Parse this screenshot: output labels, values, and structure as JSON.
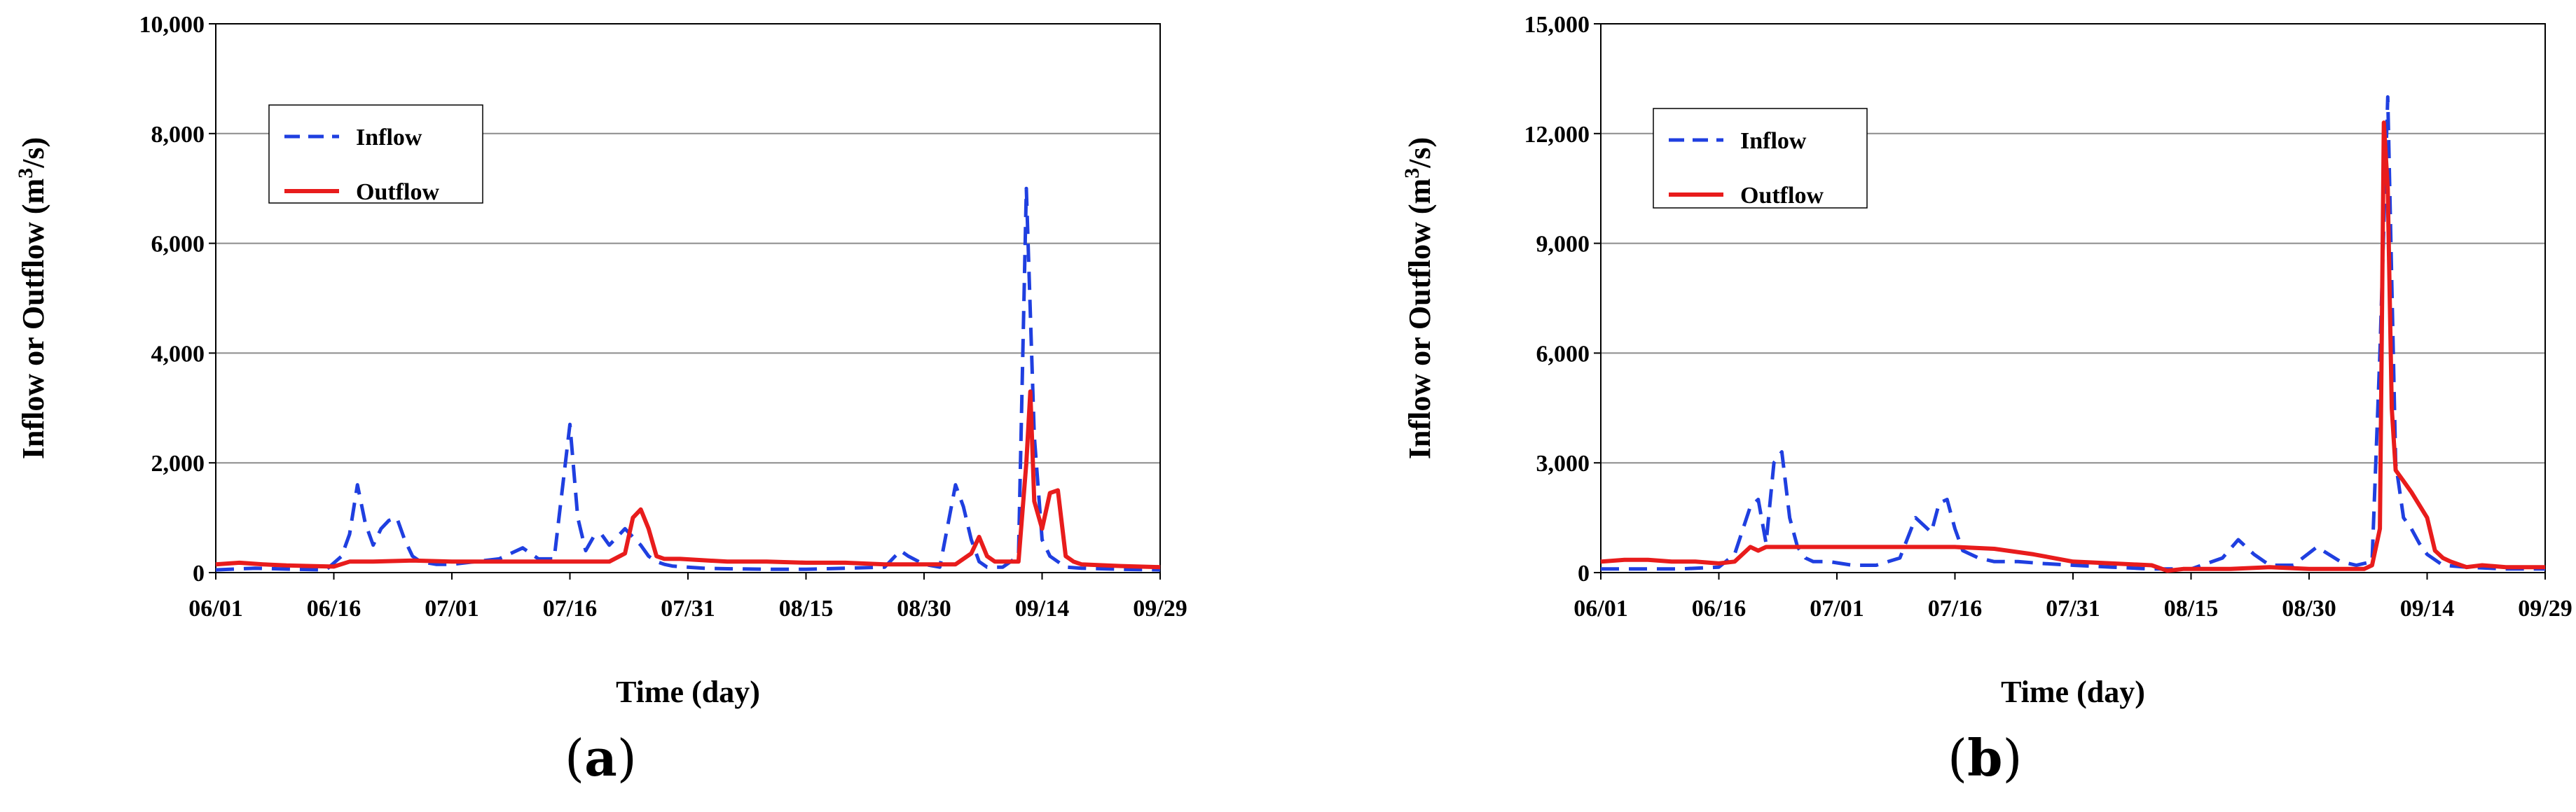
{
  "chart_data": [
    {
      "type": "line",
      "panel_label": "a",
      "xlabel": "Time (day)",
      "ylabel": "Inflow or Outflow (m3/s)",
      "ylabel_parts": {
        "before": "Inflow or Outflow (m",
        "sup": "3",
        "after": "/s)"
      },
      "x_tick_labels": [
        "06/01",
        "06/16",
        "07/01",
        "07/16",
        "07/31",
        "08/15",
        "08/30",
        "09/14",
        "09/29"
      ],
      "y_tick_labels": [
        "0",
        "2,000",
        "4,000",
        "6,000",
        "8,000",
        "10,000"
      ],
      "ylim": [
        0,
        10000
      ],
      "xlim_days": [
        0,
        120
      ],
      "grid": "horizontal",
      "legend_position": "top-left",
      "series": [
        {
          "name": "Inflow",
          "color": "#1f3fe0",
          "style": "dashed",
          "x": [
            0,
            5,
            10,
            14,
            16,
            17,
            18,
            19,
            20,
            21,
            22,
            23,
            24,
            25,
            26,
            28,
            30,
            33,
            36,
            39,
            41,
            43,
            45,
            46,
            47,
            48,
            49,
            50,
            52,
            54,
            55,
            56,
            57,
            58,
            60,
            62,
            65,
            70,
            75,
            80,
            85,
            87,
            88,
            90,
            92,
            94,
            95,
            96,
            97,
            98,
            100,
            102,
            103,
            104,
            105,
            106,
            108,
            110,
            115,
            120
          ],
          "values": [
            50,
            80,
            60,
            50,
            300,
            700,
            1600,
            900,
            500,
            800,
            950,
            1000,
            600,
            300,
            200,
            150,
            150,
            200,
            250,
            450,
            250,
            250,
            2700,
            1000,
            400,
            650,
            700,
            500,
            800,
            500,
            300,
            200,
            150,
            120,
            100,
            80,
            70,
            60,
            60,
            80,
            100,
            400,
            300,
            150,
            100,
            1600,
            1200,
            600,
            200,
            100,
            100,
            300,
            7000,
            2500,
            600,
            300,
            100,
            80,
            60,
            50
          ]
        },
        {
          "name": "Outflow",
          "color": "#e81c1c",
          "style": "solid",
          "x": [
            0,
            3,
            6,
            9,
            12,
            15,
            17,
            20,
            25,
            30,
            35,
            40,
            45,
            50,
            52,
            53,
            54,
            55,
            56,
            57,
            59,
            65,
            70,
            75,
            80,
            85,
            90,
            94,
            96,
            97,
            98,
            99,
            100,
            102,
            103,
            103.5,
            104,
            105,
            106,
            107,
            108,
            109,
            110,
            115,
            120
          ],
          "values": [
            150,
            180,
            150,
            130,
            120,
            110,
            200,
            200,
            220,
            200,
            200,
            200,
            200,
            200,
            350,
            1000,
            1150,
            800,
            300,
            250,
            250,
            200,
            200,
            180,
            180,
            150,
            150,
            150,
            350,
            650,
            300,
            200,
            200,
            200,
            2000,
            3300,
            1300,
            800,
            1450,
            1500,
            300,
            200,
            150,
            120,
            100
          ]
        }
      ]
    },
    {
      "type": "line",
      "panel_label": "b",
      "xlabel": "Time (day)",
      "ylabel": "Inflow or Outflow (m3/s)",
      "ylabel_parts": {
        "before": "Inflow or Outflow (m",
        "sup": "3",
        "after": "/s)"
      },
      "x_tick_labels": [
        "06/01",
        "06/16",
        "07/01",
        "07/16",
        "07/31",
        "08/15",
        "08/30",
        "09/14",
        "09/29"
      ],
      "y_tick_labels": [
        "0",
        "3,000",
        "6,000",
        "9,000",
        "12,000",
        "15,000"
      ],
      "ylim": [
        0,
        15000
      ],
      "xlim_days": [
        0,
        120
      ],
      "grid": "horizontal",
      "legend_position": "top-left",
      "series": [
        {
          "name": "Inflow",
          "color": "#1f3fe0",
          "style": "dashed",
          "x": [
            0,
            5,
            10,
            15,
            17,
            19,
            20,
            21,
            22,
            23,
            24,
            25,
            26,
            27,
            29,
            32,
            35,
            38,
            40,
            42,
            43,
            44,
            45,
            46,
            48,
            50,
            53,
            56,
            60,
            65,
            70,
            75,
            79,
            81,
            83,
            85,
            88,
            91,
            94,
            96,
            98,
            99,
            100,
            101,
            102,
            103,
            104,
            105,
            107,
            110,
            115,
            120
          ],
          "values": [
            100,
            100,
            100,
            150,
            500,
            1800,
            2000,
            800,
            3000,
            3300,
            1500,
            700,
            400,
            300,
            300,
            200,
            200,
            400,
            1500,
            1100,
            1900,
            2000,
            1200,
            600,
            400,
            300,
            300,
            250,
            200,
            150,
            100,
            100,
            400,
            900,
            500,
            200,
            200,
            700,
            300,
            200,
            300,
            6000,
            13000,
            3000,
            1500,
            1200,
            800,
            500,
            200,
            150,
            100,
            100
          ]
        },
        {
          "name": "Outflow",
          "color": "#e81c1c",
          "style": "solid",
          "x": [
            0,
            3,
            6,
            9,
            12,
            15,
            17,
            19,
            20,
            21,
            25,
            30,
            35,
            40,
            45,
            50,
            55,
            60,
            65,
            70,
            72,
            74,
            76,
            78,
            80,
            85,
            90,
            95,
            97,
            98,
            99,
            99.5,
            100,
            100.5,
            101,
            102,
            103,
            105,
            106,
            107,
            108,
            110,
            112,
            115,
            120
          ],
          "values": [
            300,
            350,
            350,
            300,
            300,
            250,
            300,
            700,
            600,
            700,
            700,
            700,
            700,
            700,
            700,
            650,
            500,
            300,
            250,
            200,
            50,
            100,
            100,
            100,
            100,
            150,
            100,
            100,
            100,
            200,
            1200,
            12300,
            10500,
            4500,
            2800,
            2500,
            2200,
            1500,
            600,
            400,
            300,
            150,
            200,
            150,
            150
          ]
        }
      ]
    }
  ]
}
